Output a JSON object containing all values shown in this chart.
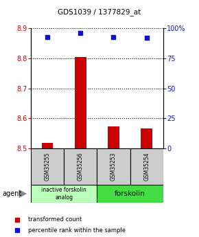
{
  "title": "GDS1039 / 1377829_at",
  "samples": [
    "GSM35255",
    "GSM35256",
    "GSM35253",
    "GSM35254"
  ],
  "bar_values": [
    8.517,
    8.805,
    8.573,
    8.565
  ],
  "percentile_values": [
    93,
    96,
    93,
    92
  ],
  "base_value": 8.5,
  "ylim_left": [
    8.5,
    8.9
  ],
  "ylim_right": [
    0,
    100
  ],
  "yticks_left": [
    8.5,
    8.6,
    8.7,
    8.8,
    8.9
  ],
  "yticks_right": [
    0,
    25,
    50,
    75,
    100
  ],
  "ytick_labels_right": [
    "0",
    "25",
    "50",
    "75",
    "100%"
  ],
  "bar_color": "#cc0000",
  "dot_color": "#1111cc",
  "group1_label": "inactive forskolin\nanalog",
  "group2_label": "forskolin",
  "group1_color": "#bbffbb",
  "group2_color": "#44dd44",
  "group1_samples": [
    0,
    1
  ],
  "group2_samples": [
    2,
    3
  ],
  "agent_label": "agent",
  "legend_bar_label": "transformed count",
  "legend_dot_label": "percentile rank within the sample",
  "left_tick_color": "#cc0000",
  "right_tick_color": "#1111cc",
  "bar_width": 0.35
}
